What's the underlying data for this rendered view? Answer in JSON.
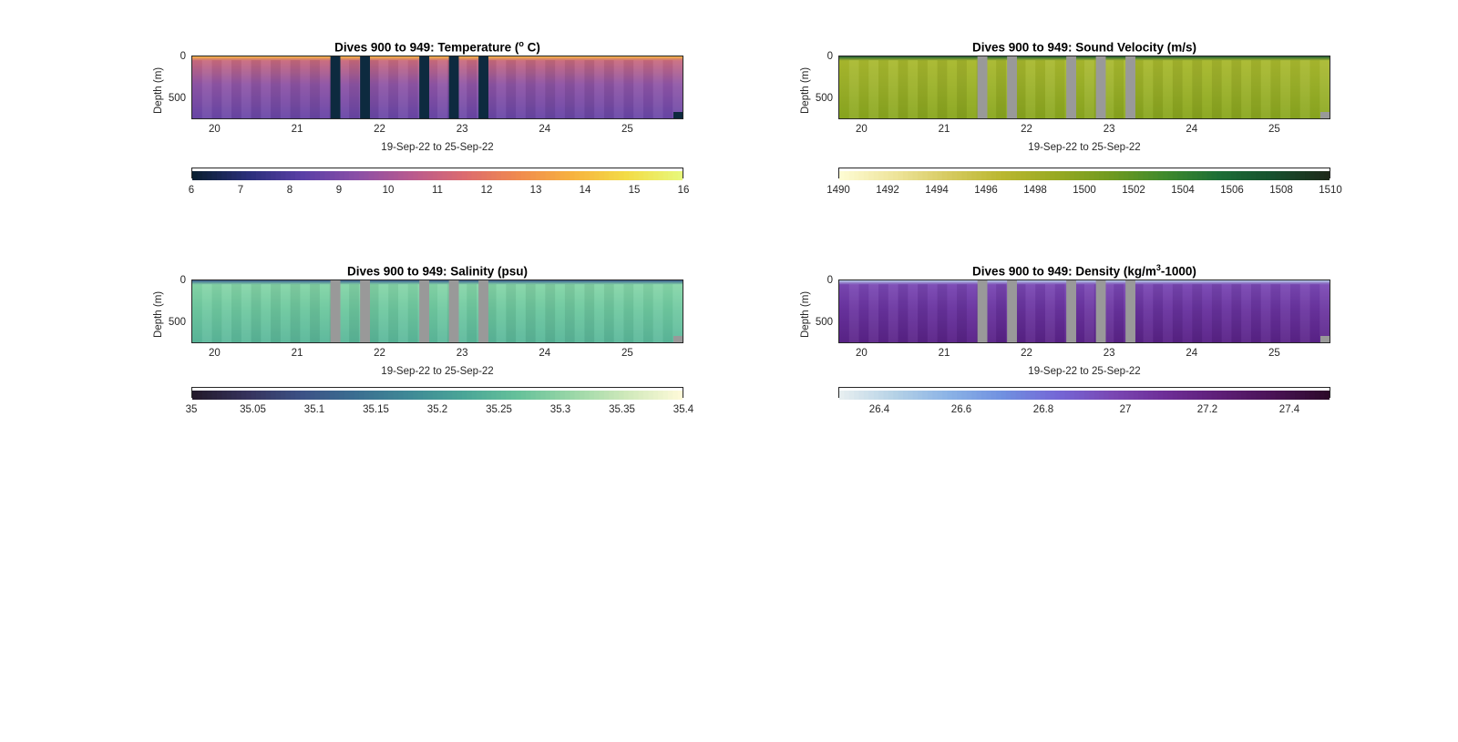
{
  "panels": [
    {
      "id": "temperature",
      "title_main": "Dives 900 to 949: Temperature (",
      "title_sup": "o",
      "title_tail": " C)",
      "ylabel": "Depth (m)",
      "xlabel": "19-Sep-22 to 25-Sep-22",
      "yticks": [
        "0",
        "500"
      ],
      "xticks": [
        "20",
        "21",
        "22",
        "23",
        "24",
        "25"
      ],
      "cbar_ticks": [
        "6",
        "7",
        "8",
        "9",
        "10",
        "11",
        "12",
        "13",
        "14",
        "15",
        "16"
      ],
      "colors": {
        "surface": "#f5b445",
        "upper": "#c96a7e",
        "mid": "#8f55a6",
        "deep": "#6a47a8",
        "gap": "#0d2a3f"
      },
      "cmap": [
        "#0b1f33",
        "#2a2f7a",
        "#5a3fa6",
        "#8a4fa6",
        "#b85a8f",
        "#dc6b6f",
        "#f08a4f",
        "#f7b23f",
        "#f3dc46",
        "#e8f77a"
      ]
    },
    {
      "id": "sound-velocity",
      "title_main": "Dives 900 to 949: Sound Velocity (m/s)",
      "title_sup": "",
      "title_tail": "",
      "ylabel": "Depth (m)",
      "xlabel": "19-Sep-22 to 25-Sep-22",
      "yticks": [
        "0",
        "500"
      ],
      "xticks": [
        "20",
        "21",
        "22",
        "23",
        "24",
        "25"
      ],
      "cbar_ticks": [
        "1490",
        "1492",
        "1494",
        "1496",
        "1498",
        "1500",
        "1502",
        "1504",
        "1506",
        "1508",
        "1510"
      ],
      "colors": {
        "surface": "#1f5e36",
        "upper": "#a9b92e",
        "mid": "#9db22a",
        "deep": "#8aa71f",
        "gap": "#999999"
      },
      "cmap": [
        "#fdfbd2",
        "#eee49a",
        "#d6ca5f",
        "#b9b72f",
        "#97a922",
        "#6f9a20",
        "#3f8a2c",
        "#1c6e36",
        "#17502e",
        "#1e2a1a"
      ]
    },
    {
      "id": "salinity",
      "title_main": "Dives 900 to 949: Salinity (psu)",
      "title_sup": "",
      "title_tail": "",
      "ylabel": "Depth (m)",
      "xlabel": "19-Sep-22 to 25-Sep-22",
      "yticks": [
        "0",
        "500"
      ],
      "xticks": [
        "20",
        "21",
        "22",
        "23",
        "24",
        "25"
      ],
      "cbar_ticks": [
        "35",
        "35.05",
        "35.1",
        "35.15",
        "35.2",
        "35.25",
        "35.3",
        "35.35",
        "35.4"
      ],
      "colors": {
        "surface": "#3b5d8f",
        "upper": "#86d6a8",
        "mid": "#6fc9a0",
        "deep": "#5bb89b",
        "gap": "#999999"
      },
      "cmap": [
        "#231a2c",
        "#36335d",
        "#3c5286",
        "#3b6f91",
        "#3f8a96",
        "#4aa697",
        "#66c19a",
        "#9ad7a7",
        "#cfe9ba",
        "#fdf9d8"
      ]
    },
    {
      "id": "density",
      "title_main": "Dives 900 to 949: Density (kg/m",
      "title_sup": "3",
      "title_tail": "-1000)",
      "ylabel": "Depth (m)",
      "xlabel": "19-Sep-22 to 25-Sep-22",
      "yticks": [
        "0",
        "500"
      ],
      "xticks": [
        "20",
        "21",
        "22",
        "23",
        "24",
        "25"
      ],
      "cbar_ticks": [
        "26.4",
        "26.6",
        "26.8",
        "27",
        "27.2",
        "27.4"
      ],
      "colors": {
        "surface": "#b7cde8",
        "upper": "#7a48b4",
        "mid": "#6a34a0",
        "deep": "#5a2388",
        "gap": "#999999"
      },
      "cmap": [
        "#e6eef0",
        "#b4d1e6",
        "#8ab2e6",
        "#7090e0",
        "#7467d6",
        "#7a48b4",
        "#6e2e97",
        "#5e1f77",
        "#4a1356",
        "#2d0a2b"
      ]
    }
  ],
  "chart_data": [
    {
      "type": "heatmap",
      "title": "Dives 900 to 949: Temperature (o C)",
      "xlabel": "19-Sep-22 to 25-Sep-22",
      "ylabel": "Depth (m)",
      "x_range_days": [
        19.72,
        25.68
      ],
      "y_range_m": [
        0,
        750
      ],
      "y_reversed": true,
      "xticks": [
        20,
        21,
        22,
        23,
        24,
        25
      ],
      "yticks": [
        0,
        500
      ],
      "gaps_day": [
        [
          21.4,
          21.52
        ],
        [
          21.76,
          21.88
        ],
        [
          22.48,
          22.6
        ],
        [
          22.84,
          22.96
        ],
        [
          23.2,
          23.32
        ]
      ],
      "colorbar": {
        "min": 6,
        "max": 16,
        "ticks": [
          6,
          7,
          8,
          9,
          10,
          11,
          12,
          13,
          14,
          15,
          16
        ]
      },
      "profile": {
        "surface": 14.5,
        "upper_100m": 10.5,
        "mid_400m": 9.6,
        "deep_700m": 9.2
      }
    },
    {
      "type": "heatmap",
      "title": "Dives 900 to 949: Sound Velocity (m/s)",
      "xlabel": "19-Sep-22 to 25-Sep-22",
      "ylabel": "Depth (m)",
      "x_range_days": [
        19.72,
        25.68
      ],
      "y_range_m": [
        0,
        750
      ],
      "y_reversed": true,
      "xticks": [
        20,
        21,
        22,
        23,
        24,
        25
      ],
      "yticks": [
        0,
        500
      ],
      "gaps_day": [
        [
          21.4,
          21.52
        ],
        [
          21.76,
          21.88
        ],
        [
          22.48,
          22.6
        ],
        [
          22.84,
          22.96
        ],
        [
          23.2,
          23.32
        ]
      ],
      "colorbar": {
        "min": 1490,
        "max": 1510,
        "ticks": [
          1490,
          1492,
          1494,
          1496,
          1498,
          1500,
          1502,
          1504,
          1506,
          1508,
          1510
        ]
      },
      "profile": {
        "surface": 1504.5,
        "upper_100m": 1497.5,
        "mid_400m": 1498.0,
        "deep_700m": 1499.0
      }
    },
    {
      "type": "heatmap",
      "title": "Dives 900 to 949: Salinity (psu)",
      "xlabel": "19-Sep-22 to 25-Sep-22",
      "ylabel": "Depth (m)",
      "x_range_days": [
        19.72,
        25.68
      ],
      "y_range_m": [
        0,
        750
      ],
      "y_reversed": true,
      "xticks": [
        20,
        21,
        22,
        23,
        24,
        25
      ],
      "yticks": [
        0,
        500
      ],
      "gaps_day": [
        [
          21.4,
          21.52
        ],
        [
          21.76,
          21.88
        ],
        [
          22.48,
          22.6
        ],
        [
          22.84,
          22.96
        ],
        [
          23.2,
          23.32
        ]
      ],
      "colorbar": {
        "min": 35,
        "max": 35.4,
        "ticks": [
          35,
          35.05,
          35.1,
          35.15,
          35.2,
          35.25,
          35.3,
          35.35,
          35.4
        ]
      },
      "profile": {
        "surface": 35.12,
        "upper_100m": 35.33,
        "mid_400m": 35.3,
        "deep_700m": 35.27
      }
    },
    {
      "type": "heatmap",
      "title": "Dives 900 to 949: Density (kg/m3-1000)",
      "xlabel": "19-Sep-22 to 25-Sep-22",
      "ylabel": "Depth (m)",
      "x_range_days": [
        19.72,
        25.68
      ],
      "y_range_m": [
        0,
        750
      ],
      "y_reversed": true,
      "xticks": [
        20,
        21,
        22,
        23,
        24,
        25
      ],
      "yticks": [
        0,
        500
      ],
      "gaps_day": [
        [
          21.4,
          21.52
        ],
        [
          21.76,
          21.88
        ],
        [
          22.48,
          22.6
        ],
        [
          22.84,
          22.96
        ],
        [
          23.2,
          23.32
        ]
      ],
      "colorbar": {
        "min": 26.3,
        "max": 27.5,
        "ticks": [
          26.4,
          26.6,
          26.8,
          27,
          27.2,
          27.4
        ]
      },
      "profile": {
        "surface": 26.6,
        "upper_100m": 27.0,
        "mid_400m": 27.1,
        "deep_700m": 27.2
      }
    }
  ]
}
